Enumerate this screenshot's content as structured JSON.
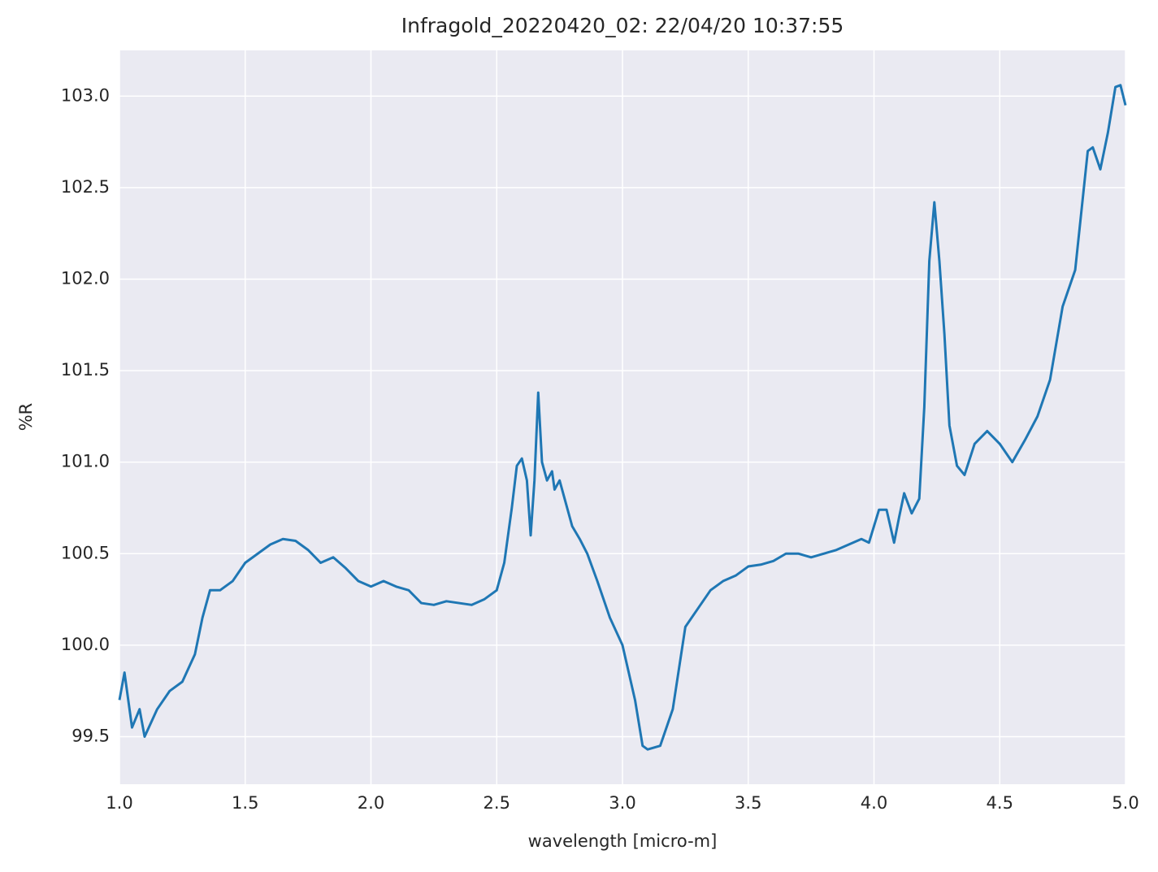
{
  "chart_data": {
    "type": "line",
    "title": "Infragold_20220420_02:  22/04/20 10:37:55",
    "x_label": "wavelength [micro-m]",
    "y_label": "%R",
    "x": [
      1.0,
      1.02,
      1.05,
      1.08,
      1.1,
      1.15,
      1.2,
      1.25,
      1.3,
      1.33,
      1.36,
      1.4,
      1.45,
      1.5,
      1.55,
      1.6,
      1.65,
      1.7,
      1.75,
      1.8,
      1.85,
      1.9,
      1.95,
      2.0,
      2.05,
      2.1,
      2.15,
      2.2,
      2.25,
      2.3,
      2.35,
      2.4,
      2.45,
      2.5,
      2.53,
      2.56,
      2.58,
      2.6,
      2.62,
      2.635,
      2.65,
      2.665,
      2.68,
      2.7,
      2.72,
      2.73,
      2.75,
      2.77,
      2.8,
      2.83,
      2.86,
      2.9,
      2.95,
      3.0,
      3.05,
      3.08,
      3.1,
      3.15,
      3.2,
      3.25,
      3.3,
      3.35,
      3.4,
      3.45,
      3.5,
      3.55,
      3.6,
      3.65,
      3.7,
      3.75,
      3.8,
      3.85,
      3.9,
      3.95,
      3.98,
      4.0,
      4.02,
      4.05,
      4.08,
      4.1,
      4.12,
      4.15,
      4.18,
      4.2,
      4.22,
      4.24,
      4.26,
      4.28,
      4.3,
      4.33,
      4.36,
      4.4,
      4.45,
      4.5,
      4.55,
      4.6,
      4.65,
      4.7,
      4.75,
      4.8,
      4.85,
      4.87,
      4.9,
      4.93,
      4.96,
      4.98,
      5.0
    ],
    "series": [
      {
        "name": "%R",
        "color": "#1f77b4",
        "values": [
          99.7,
          99.85,
          99.55,
          99.65,
          99.5,
          99.65,
          99.75,
          99.8,
          99.95,
          100.15,
          100.3,
          100.3,
          100.35,
          100.45,
          100.5,
          100.55,
          100.58,
          100.57,
          100.52,
          100.45,
          100.48,
          100.42,
          100.35,
          100.32,
          100.35,
          100.32,
          100.3,
          100.23,
          100.22,
          100.24,
          100.23,
          100.22,
          100.25,
          100.3,
          100.45,
          100.75,
          100.98,
          101.02,
          100.9,
          100.6,
          100.9,
          101.38,
          101.0,
          100.9,
          100.95,
          100.85,
          100.9,
          100.8,
          100.65,
          100.58,
          100.5,
          100.35,
          100.15,
          100.0,
          99.7,
          99.45,
          99.43,
          99.45,
          99.65,
          100.1,
          100.2,
          100.3,
          100.35,
          100.38,
          100.43,
          100.44,
          100.46,
          100.5,
          100.5,
          100.48,
          100.5,
          100.52,
          100.55,
          100.58,
          100.56,
          100.65,
          100.74,
          100.74,
          100.56,
          100.7,
          100.83,
          100.72,
          100.8,
          101.3,
          102.1,
          102.42,
          102.1,
          101.7,
          101.2,
          100.98,
          100.93,
          101.1,
          101.17,
          101.1,
          101.0,
          101.12,
          101.25,
          101.45,
          101.85,
          102.05,
          102.7,
          102.72,
          102.6,
          102.8,
          103.05,
          103.06,
          102.95
        ]
      }
    ],
    "xlim": [
      1,
      5
    ],
    "xticks": [
      {
        "value": 1,
        "label": "1.0"
      },
      1.5,
      {
        "value": 2,
        "label": "2.0"
      },
      2.5,
      {
        "value": 3,
        "label": "3.0"
      },
      3.5,
      {
        "value": 4,
        "label": "4.0"
      },
      4.5,
      {
        "value": 5,
        "label": "5.0"
      }
    ],
    "ylim": [
      99.24,
      103.25
    ],
    "yticks": [
      99.5,
      {
        "value": 100,
        "label": "100.0"
      },
      100.5,
      {
        "value": 101,
        "label": "101.0"
      },
      101.5,
      {
        "value": 102,
        "label": "102.0"
      },
      102.5,
      {
        "value": 103,
        "label": "103.0"
      }
    ],
    "grid": true,
    "background": "#eaeaf2"
  }
}
